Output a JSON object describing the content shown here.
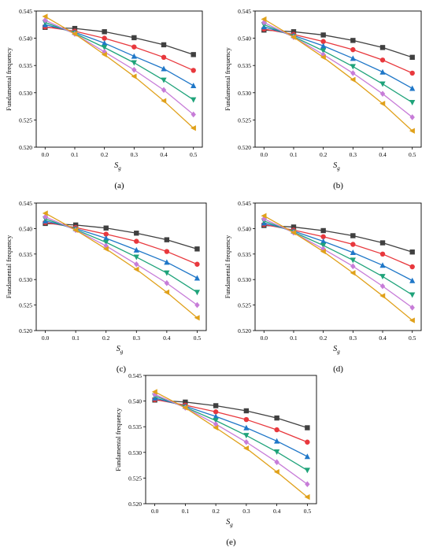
{
  "figure": {
    "series_colors": [
      "#404040",
      "#e8383d",
      "#1f77c8",
      "#1fa37a",
      "#c77cd8",
      "#e0a11b"
    ],
    "series_markers": [
      "square",
      "circle",
      "triangle-up",
      "triangle-down",
      "diamond",
      "triangle-left"
    ]
  },
  "chart_data": [
    {
      "type": "line",
      "panel_label": "(a)",
      "xlabel": "S",
      "xlabel_sub": "g",
      "ylabel": "Fundamental frequency",
      "xlim": [
        -0.03,
        0.53
      ],
      "ylim": [
        0.52,
        0.545
      ],
      "xticks": [
        "0.0",
        "0.1",
        "0.2",
        "0.3",
        "0.4",
        "0.5"
      ],
      "yticks": [
        "0.520",
        "0.525",
        "0.530",
        "0.535",
        "0.540",
        "0.545"
      ],
      "x": [
        0.0,
        0.1,
        0.2,
        0.3,
        0.4,
        0.5
      ],
      "series": [
        {
          "values": [
            0.542,
            0.5418,
            0.5412,
            0.5401,
            0.5388,
            0.537
          ]
        },
        {
          "values": [
            0.5421,
            0.5413,
            0.54,
            0.5384,
            0.5365,
            0.5341
          ]
        },
        {
          "values": [
            0.5425,
            0.5411,
            0.5391,
            0.5367,
            0.5344,
            0.5313
          ]
        },
        {
          "values": [
            0.5429,
            0.5409,
            0.5383,
            0.5355,
            0.5323,
            0.5287
          ]
        },
        {
          "values": [
            0.5433,
            0.5408,
            0.5375,
            0.5342,
            0.5305,
            0.526
          ]
        },
        {
          "values": [
            0.544,
            0.5408,
            0.537,
            0.533,
            0.5285,
            0.5235
          ]
        }
      ]
    },
    {
      "type": "line",
      "panel_label": "(b)",
      "xlabel": "S",
      "xlabel_sub": "g",
      "ylabel": "Fundamental frequency",
      "xlim": [
        -0.03,
        0.53
      ],
      "ylim": [
        0.52,
        0.545
      ],
      "xticks": [
        "0.0",
        "0.1",
        "0.2",
        "0.3",
        "0.4",
        "0.5"
      ],
      "yticks": [
        "0.520",
        "0.525",
        "0.530",
        "0.535",
        "0.540",
        "0.545"
      ],
      "x": [
        0.0,
        0.1,
        0.2,
        0.3,
        0.4,
        0.5
      ],
      "series": [
        {
          "values": [
            0.5415,
            0.5412,
            0.5406,
            0.5396,
            0.5383,
            0.5365
          ]
        },
        {
          "values": [
            0.5417,
            0.5407,
            0.5394,
            0.5379,
            0.536,
            0.5336
          ]
        },
        {
          "values": [
            0.5421,
            0.5405,
            0.5386,
            0.5363,
            0.5338,
            0.5308
          ]
        },
        {
          "values": [
            0.5425,
            0.5403,
            0.5377,
            0.5348,
            0.5316,
            0.5282
          ]
        },
        {
          "values": [
            0.5429,
            0.5402,
            0.537,
            0.5336,
            0.5298,
            0.5255
          ]
        },
        {
          "values": [
            0.5435,
            0.5402,
            0.5365,
            0.5324,
            0.528,
            0.523
          ]
        }
      ]
    },
    {
      "type": "line",
      "panel_label": "(c)",
      "xlabel": "S",
      "xlabel_sub": "g",
      "ylabel": "Fundamental frequency",
      "xlim": [
        -0.03,
        0.53
      ],
      "ylim": [
        0.52,
        0.545
      ],
      "xticks": [
        "0.0",
        "0.1",
        "0.2",
        "0.3",
        "0.4",
        "0.5"
      ],
      "yticks": [
        "0.520",
        "0.525",
        "0.530",
        "0.535",
        "0.540",
        "0.545"
      ],
      "x": [
        0.0,
        0.1,
        0.2,
        0.3,
        0.4,
        0.5
      ],
      "series": [
        {
          "values": [
            0.541,
            0.5407,
            0.5401,
            0.5391,
            0.5378,
            0.536
          ]
        },
        {
          "values": [
            0.5412,
            0.5402,
            0.5389,
            0.5375,
            0.5355,
            0.533
          ]
        },
        {
          "values": [
            0.5415,
            0.54,
            0.5381,
            0.5358,
            0.5334,
            0.5303
          ]
        },
        {
          "values": [
            0.5419,
            0.5398,
            0.5373,
            0.5344,
            0.5313,
            0.5275
          ]
        },
        {
          "values": [
            0.5423,
            0.5397,
            0.5366,
            0.533,
            0.5293,
            0.525
          ]
        },
        {
          "values": [
            0.543,
            0.5397,
            0.536,
            0.532,
            0.5275,
            0.5225
          ]
        }
      ]
    },
    {
      "type": "line",
      "panel_label": "(d)",
      "xlabel": "S",
      "xlabel_sub": "g",
      "ylabel": "Fundamental frequency",
      "xlim": [
        -0.03,
        0.53
      ],
      "ylim": [
        0.52,
        0.545
      ],
      "xticks": [
        "0.0",
        "0.1",
        "0.2",
        "0.3",
        "0.4",
        "0.5"
      ],
      "yticks": [
        "0.520",
        "0.525",
        "0.530",
        "0.535",
        "0.540",
        "0.545"
      ],
      "x": [
        0.0,
        0.1,
        0.2,
        0.3,
        0.4,
        0.5
      ],
      "series": [
        {
          "values": [
            0.5406,
            0.5403,
            0.5396,
            0.5386,
            0.5372,
            0.5354
          ]
        },
        {
          "values": [
            0.5408,
            0.5397,
            0.5384,
            0.5369,
            0.535,
            0.5325
          ]
        },
        {
          "values": [
            0.5411,
            0.5395,
            0.5375,
            0.5353,
            0.5328,
            0.5298
          ]
        },
        {
          "values": [
            0.5415,
            0.5393,
            0.5367,
            0.5338,
            0.5306,
            0.527
          ]
        },
        {
          "values": [
            0.5419,
            0.5392,
            0.536,
            0.5326,
            0.5287,
            0.5245
          ]
        },
        {
          "values": [
            0.5425,
            0.5392,
            0.5355,
            0.5313,
            0.5268,
            0.522
          ]
        }
      ]
    },
    {
      "type": "line",
      "panel_label": "(e)",
      "xlabel": "S",
      "xlabel_sub": "g",
      "ylabel": "Fundamental frequency",
      "xlim": [
        -0.03,
        0.53
      ],
      "ylim": [
        0.52,
        0.545
      ],
      "xticks": [
        "0.0",
        "0.1",
        "0.2",
        "0.3",
        "0.4",
        "0.5"
      ],
      "yticks": [
        "0.520",
        "0.525",
        "0.530",
        "0.535",
        "0.540",
        "0.545"
      ],
      "x": [
        0.0,
        0.1,
        0.2,
        0.3,
        0.4,
        0.5
      ],
      "series": [
        {
          "values": [
            0.5402,
            0.5398,
            0.5391,
            0.5381,
            0.5367,
            0.5348
          ]
        },
        {
          "values": [
            0.5403,
            0.5392,
            0.5379,
            0.5364,
            0.5344,
            0.532
          ]
        },
        {
          "values": [
            0.5406,
            0.539,
            0.537,
            0.5348,
            0.5322,
            0.5292
          ]
        },
        {
          "values": [
            0.541,
            0.5388,
            0.5362,
            0.5333,
            0.5301,
            0.5265
          ]
        },
        {
          "values": [
            0.5413,
            0.5387,
            0.5355,
            0.532,
            0.5281,
            0.5238
          ]
        },
        {
          "values": [
            0.5418,
            0.5387,
            0.5348,
            0.5308,
            0.5262,
            0.5213
          ]
        }
      ]
    }
  ]
}
